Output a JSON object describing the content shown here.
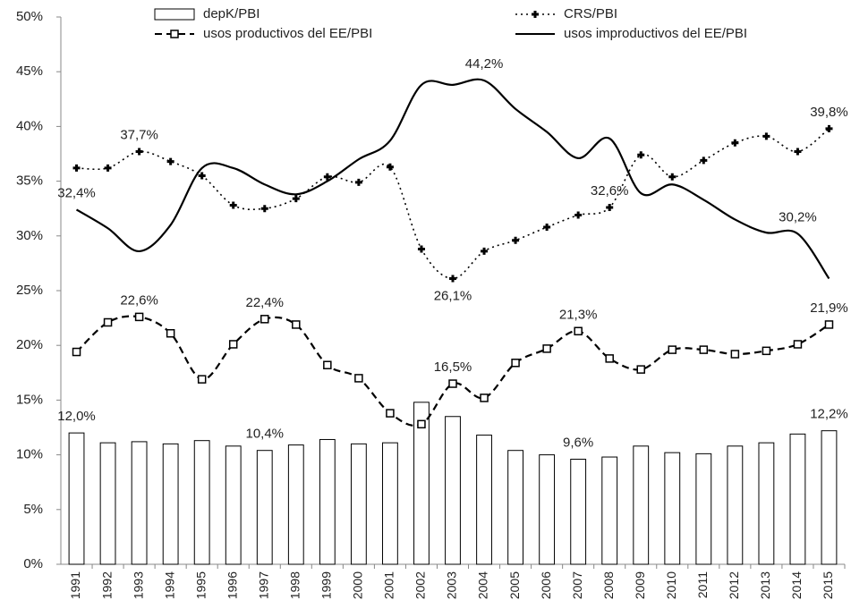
{
  "chart_data": {
    "type": "bar-line",
    "categories": [
      "1991",
      "1992",
      "1993",
      "1994",
      "1995",
      "1996",
      "1997",
      "1998",
      "1999",
      "2000",
      "2001",
      "2002",
      "2003",
      "2004",
      "2005",
      "2006",
      "2007",
      "2008",
      "2009",
      "2010",
      "2011",
      "2012",
      "2013",
      "2014",
      "2015"
    ],
    "ylim": [
      0,
      50
    ],
    "yticks": [
      {
        "value": 0,
        "label": "0%"
      },
      {
        "value": 5,
        "label": "5%"
      },
      {
        "value": 10,
        "label": "10%"
      },
      {
        "value": 15,
        "label": "15%"
      },
      {
        "value": 20,
        "label": "20%"
      },
      {
        "value": 25,
        "label": "25%"
      },
      {
        "value": 30,
        "label": "30%"
      },
      {
        "value": 35,
        "label": "35%"
      },
      {
        "value": 40,
        "label": "40%"
      },
      {
        "value": 45,
        "label": "45%"
      },
      {
        "value": 50,
        "label": "50%"
      }
    ],
    "series": [
      {
        "name": "depK/PBI",
        "type": "bar",
        "color": "#000000",
        "values": [
          12.0,
          11.1,
          11.2,
          11.0,
          11.3,
          10.8,
          10.4,
          10.9,
          11.4,
          11.0,
          11.1,
          14.8,
          13.5,
          11.8,
          10.4,
          10.0,
          9.6,
          9.8,
          10.8,
          10.2,
          10.1,
          10.8,
          11.1,
          11.9,
          12.2
        ],
        "value_labels": [
          "12,0%",
          null,
          null,
          null,
          null,
          null,
          "10,4%",
          null,
          null,
          null,
          null,
          null,
          null,
          null,
          null,
          null,
          "9,6%",
          null,
          null,
          null,
          null,
          null,
          null,
          null,
          "12,2%"
        ]
      },
      {
        "name": "CRS/PBI",
        "type": "line",
        "style": "dotted",
        "marker": "cross",
        "color": "#000000",
        "values": [
          36.2,
          36.2,
          37.7,
          36.8,
          35.5,
          32.8,
          32.5,
          33.4,
          35.4,
          34.9,
          36.3,
          28.8,
          26.1,
          28.6,
          29.6,
          30.8,
          31.9,
          32.6,
          37.4,
          35.4,
          36.9,
          38.5,
          39.1,
          37.7,
          39.8
        ],
        "value_labels": [
          null,
          null,
          "37,7%",
          null,
          null,
          null,
          null,
          null,
          null,
          null,
          null,
          null,
          "26,1%",
          null,
          null,
          null,
          null,
          "32,6%",
          null,
          null,
          null,
          null,
          null,
          null,
          "39,8%"
        ]
      },
      {
        "name": "usos productivos del EE/PBI",
        "type": "line",
        "style": "dashed",
        "marker": "square",
        "color": "#000000",
        "values": [
          19.4,
          22.1,
          22.6,
          21.1,
          16.9,
          20.1,
          22.4,
          21.9,
          18.2,
          17.0,
          13.8,
          12.8,
          16.5,
          15.2,
          18.4,
          19.7,
          21.3,
          18.8,
          17.8,
          19.6,
          19.6,
          19.2,
          19.5,
          20.1,
          21.9
        ],
        "value_labels": [
          null,
          null,
          "22,6%",
          null,
          null,
          null,
          "22,4%",
          null,
          null,
          null,
          null,
          null,
          "16,5%",
          null,
          null,
          null,
          "21,3%",
          null,
          null,
          null,
          null,
          null,
          null,
          null,
          "21,9%"
        ]
      },
      {
        "name": "usos improductivos del EE/PBI",
        "type": "line",
        "style": "solid",
        "marker": "none",
        "color": "#000000",
        "values": [
          32.4,
          30.7,
          28.6,
          31.0,
          36.2,
          36.2,
          34.7,
          33.8,
          35.0,
          37.0,
          38.7,
          43.8,
          43.8,
          44.2,
          41.6,
          39.5,
          37.1,
          38.9,
          33.9,
          34.7,
          33.3,
          31.5,
          30.3,
          30.2,
          26.1
        ],
        "value_labels": [
          "32,4%",
          null,
          null,
          null,
          null,
          null,
          null,
          null,
          null,
          null,
          null,
          null,
          null,
          "44,2%",
          null,
          null,
          null,
          null,
          null,
          null,
          null,
          null,
          null,
          "30,2%",
          null
        ]
      }
    ]
  }
}
